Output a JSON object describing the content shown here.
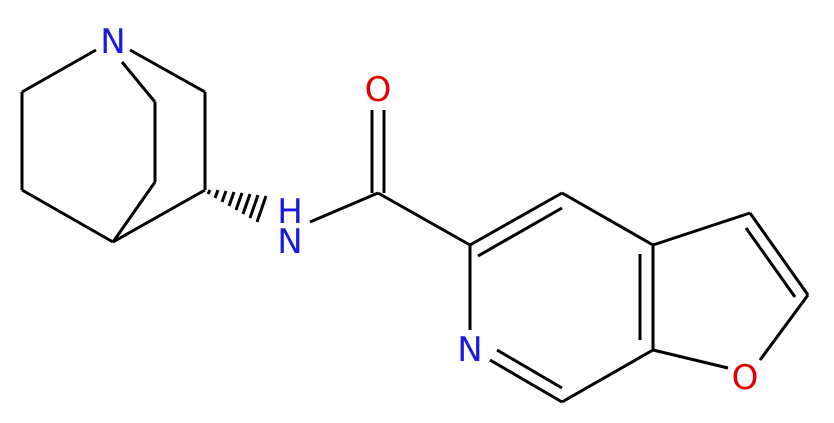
{
  "atoms": [
    {
      "label": "N"
    },
    {
      "label": "H"
    },
    {
      "label": "N"
    },
    {
      "label": "O"
    },
    {
      "label": "N"
    },
    {
      "label": "O"
    }
  ]
}
